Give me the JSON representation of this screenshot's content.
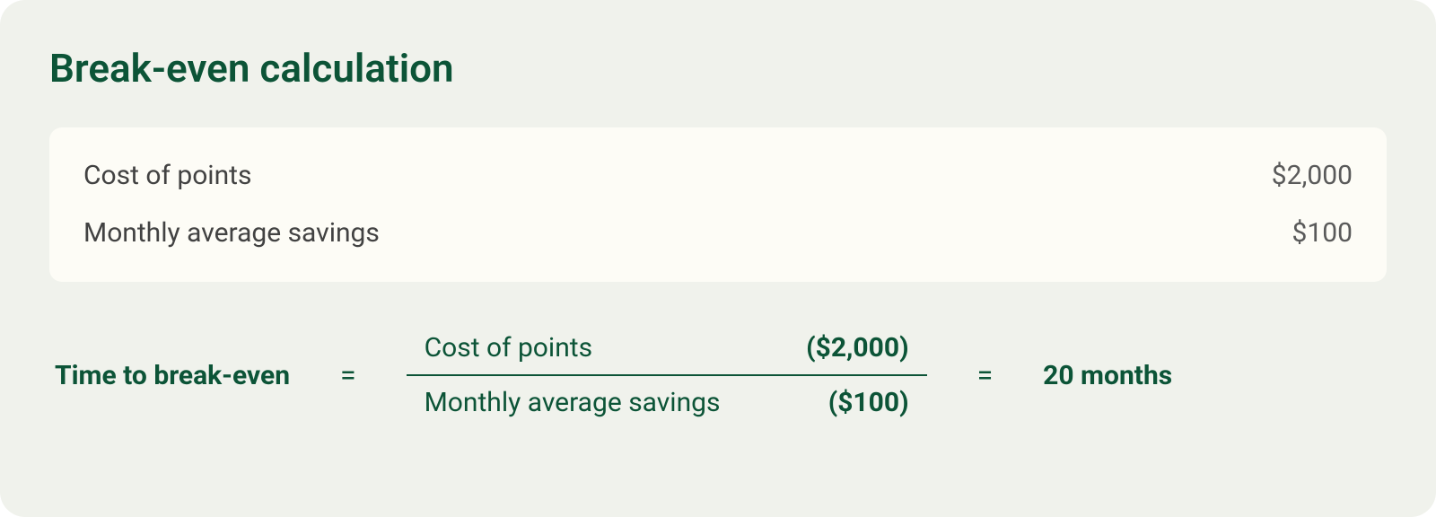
{
  "card": {
    "title": "Break-even calculation",
    "background_color": "#f0f2ec",
    "title_color": "#0c5437",
    "border_radius": 28
  },
  "inputs": {
    "box_background": "#fdfcf6",
    "rows": [
      {
        "label": "Cost of points",
        "value": "$2,000"
      },
      {
        "label": "Monthly average savings",
        "value": "$100"
      }
    ]
  },
  "formula": {
    "label": "Time to break-even",
    "equals": "=",
    "numerator_label": "Cost of points",
    "numerator_value": "($2,000)",
    "denominator_label": "Monthly average savings",
    "denominator_value": "($100)",
    "result": "20 months",
    "line_color": "#0c5437",
    "text_color": "#0c5437"
  },
  "typography": {
    "title_fontsize": 44,
    "body_fontsize": 30
  }
}
